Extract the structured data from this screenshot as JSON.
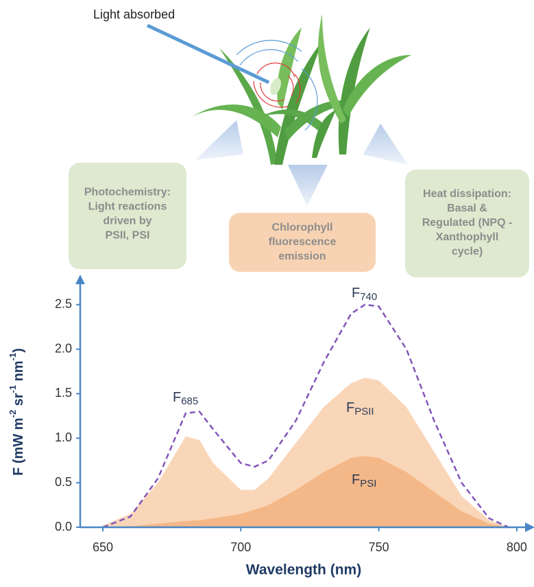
{
  "diagram": {
    "light_label": "Light absorbed",
    "boxes": [
      {
        "lines": [
          "Photochemistry:",
          "Light reactions",
          "driven by",
          "PSII, PSI"
        ]
      },
      {
        "lines": [
          "Chlorophyll",
          "fluorescence",
          "emission"
        ]
      },
      {
        "lines": [
          "Heat dissipation:",
          "Basal &",
          "Regulated (NPQ -",
          "Xanthophyll",
          "cycle)"
        ]
      }
    ]
  },
  "chart_data": {
    "type": "area",
    "xlabel": "Wavelength (nm)",
    "ylabel_parts": [
      "F (mW m",
      "-2",
      " sr",
      "-1",
      " nm",
      "-1",
      ")"
    ],
    "x": [
      650,
      660,
      670,
      680,
      685,
      690,
      700,
      705,
      710,
      720,
      730,
      740,
      745,
      750,
      760,
      770,
      780,
      790,
      797
    ],
    "series": [
      {
        "color": "#fad6b9",
        "style": "fill",
        "values": [
          0.02,
          0.15,
          0.5,
          1.02,
          0.98,
          0.72,
          0.42,
          0.42,
          0.55,
          0.95,
          1.35,
          1.62,
          1.68,
          1.65,
          1.35,
          0.85,
          0.35,
          0.08,
          0
        ]
      },
      {
        "color": "#f4b888",
        "style": "fill",
        "values": [
          0,
          0.01,
          0.04,
          0.07,
          0.08,
          0.1,
          0.15,
          0.2,
          0.25,
          0.42,
          0.62,
          0.78,
          0.8,
          0.78,
          0.62,
          0.4,
          0.18,
          0.04,
          0
        ]
      },
      {
        "color": "#8355b8",
        "style": "dashed",
        "values": [
          0,
          0.12,
          0.55,
          1.28,
          1.3,
          1.1,
          0.72,
          0.68,
          0.75,
          1.2,
          1.85,
          2.4,
          2.5,
          2.48,
          2.0,
          1.2,
          0.5,
          0.1,
          0
        ]
      }
    ],
    "annotations": [
      {
        "text": "F",
        "sub": "685"
      },
      {
        "text": "F",
        "sub": "740"
      },
      {
        "text": "F",
        "sub": "PSII"
      },
      {
        "text": "F",
        "sub": "PSI"
      }
    ],
    "xlim": [
      641.8,
      804
    ],
    "ylim": [
      0,
      2.76
    ],
    "xticks": [
      650,
      700,
      750,
      800
    ],
    "yticks": [
      {
        "value": 0,
        "label": "0.0"
      },
      0.5,
      {
        "value": 1,
        "label": "1.0"
      },
      1.5,
      {
        "value": 2,
        "label": "2.0"
      },
      2.5
    ],
    "axis_color": "#4a86c5"
  }
}
